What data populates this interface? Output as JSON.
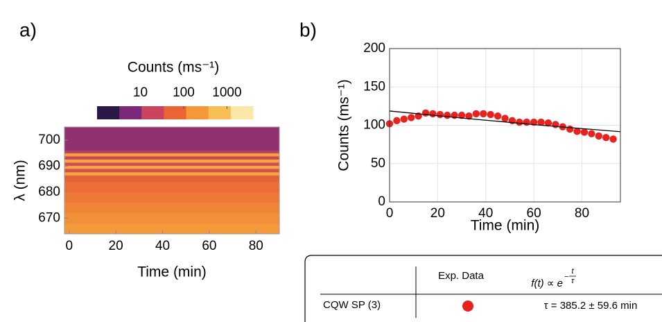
{
  "panel_labels": [
    "a)",
    "b)"
  ],
  "chart_data": [
    {
      "type": "heatmap",
      "colorbar_title": "Counts (ms⁻¹)",
      "xlabel": "Time (min)",
      "ylabel": "λ (nm)",
      "xlim": [
        -2,
        90
      ],
      "ylim": [
        664,
        705
      ],
      "xticks": [
        0,
        20,
        40,
        60,
        80
      ],
      "yticks": [
        670,
        680,
        690,
        700
      ],
      "y_bins": [
        664,
        668,
        672,
        676,
        680,
        684,
        686.5,
        687.7,
        689,
        690.2,
        691.4,
        692.6,
        693.8,
        695,
        696,
        705
      ],
      "values": [
        260,
        200,
        150,
        110,
        80,
        55,
        400,
        25,
        420,
        22,
        380,
        18,
        320,
        12,
        6,
        2
      ],
      "color_scale": "log",
      "clim": [
        1,
        4000
      ],
      "colorbar_ticks": [
        10,
        100,
        1000
      ],
      "colors": [
        "#2b1745",
        "#7a2a78",
        "#c9445c",
        "#ea6434",
        "#f4993a",
        "#f8bf55",
        "#fbe8a8"
      ]
    },
    {
      "type": "scatter",
      "xlabel": "Time (min)",
      "ylabel": "Counts (ms⁻¹)",
      "xlim": [
        0,
        96
      ],
      "ylim": [
        0,
        200
      ],
      "xticks": [
        0,
        20,
        40,
        60,
        80
      ],
      "yticks": [
        0,
        50,
        100,
        150,
        200
      ],
      "grid": true,
      "series": [
        {
          "type": "scatter",
          "color": "#e8221f",
          "x": [
            0,
            3,
            6,
            9,
            12,
            15,
            18,
            21,
            24,
            27,
            30,
            33,
            36,
            39,
            42,
            45,
            48,
            51,
            54,
            57,
            60,
            63,
            66,
            69,
            72,
            75,
            78,
            81,
            84,
            87,
            90,
            93
          ],
          "values": [
            102,
            106,
            108,
            110,
            112,
            116,
            115,
            114,
            113,
            113,
            113,
            112,
            115,
            115,
            114,
            112,
            109,
            106,
            104,
            104,
            104,
            104,
            103,
            101,
            98,
            95,
            92,
            91,
            89,
            86,
            84,
            82
          ]
        },
        {
          "type": "line",
          "color": "#000000",
          "x": [
            0,
            32,
            64,
            96
          ],
          "values": [
            118.6,
            108.8,
            99.8,
            91.6
          ]
        }
      ]
    }
  ],
  "legend_table": {
    "column": "Exp. Data",
    "formula": {
      "lhs": "f(t) ∝ e",
      "sign": "−",
      "numerator": "t",
      "denominator": "τ"
    },
    "rows": [
      {
        "label": "CQW SP (3)",
        "result": "τ = 385.2 ± 59.6 min"
      }
    ]
  }
}
